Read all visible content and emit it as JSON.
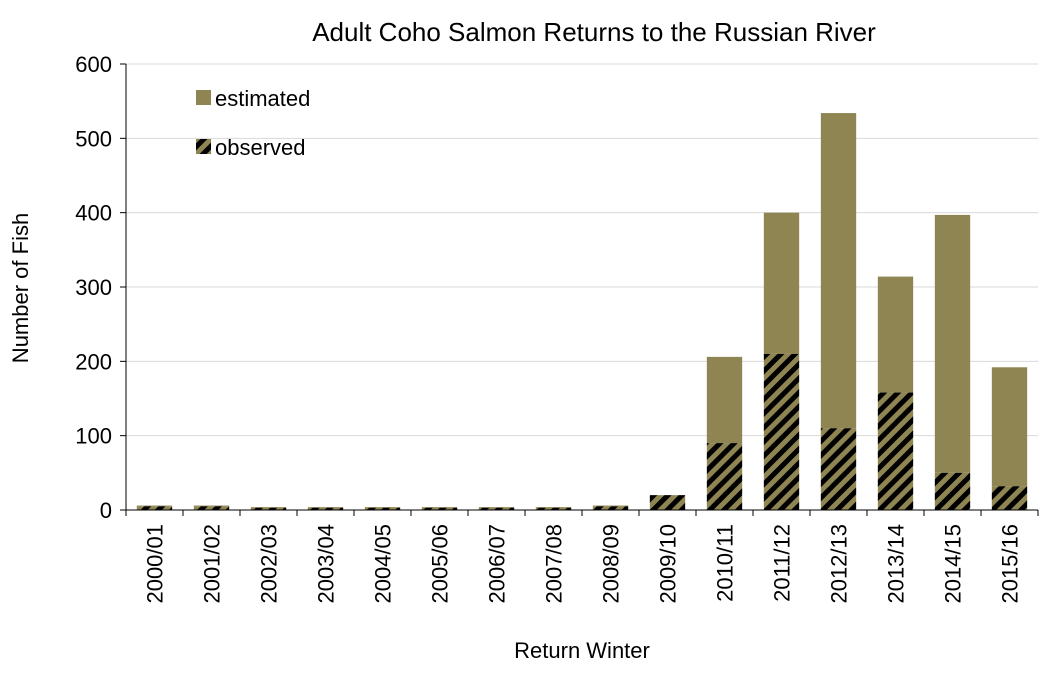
{
  "chart_data": {
    "type": "bar",
    "stacked": true,
    "title": "Adult Coho Salmon Returns to the Russian River",
    "xlabel": "Return Winter",
    "ylabel": "Number of Fish",
    "ylim": [
      0,
      600
    ],
    "yticks": [
      0,
      100,
      200,
      300,
      400,
      500,
      600
    ],
    "grid": true,
    "legend_position": "top-left",
    "categories": [
      "2000/01",
      "2001/02",
      "2002/03",
      "2003/04",
      "2004/05",
      "2005/06",
      "2006/07",
      "2007/08",
      "2008/09",
      "2009/10",
      "2010/11",
      "2011/12",
      "2012/13",
      "2013/14",
      "2014/15",
      "2015/16"
    ],
    "series": [
      {
        "name": "observed",
        "pattern": "hatched",
        "values": [
          5,
          5,
          3,
          3,
          3,
          3,
          3,
          3,
          5,
          20,
          90,
          210,
          110,
          158,
          50,
          32
        ]
      },
      {
        "name": "estimated",
        "pattern": "solid",
        "values": [
          1,
          1,
          1,
          1,
          1,
          1,
          1,
          1,
          1,
          0,
          116,
          190,
          424,
          156,
          347,
          160
        ]
      }
    ],
    "colors": {
      "bar_fill": "#8f8552",
      "hatch": "#000000",
      "grid": "#d9d9d9",
      "axis": "#000000"
    }
  }
}
